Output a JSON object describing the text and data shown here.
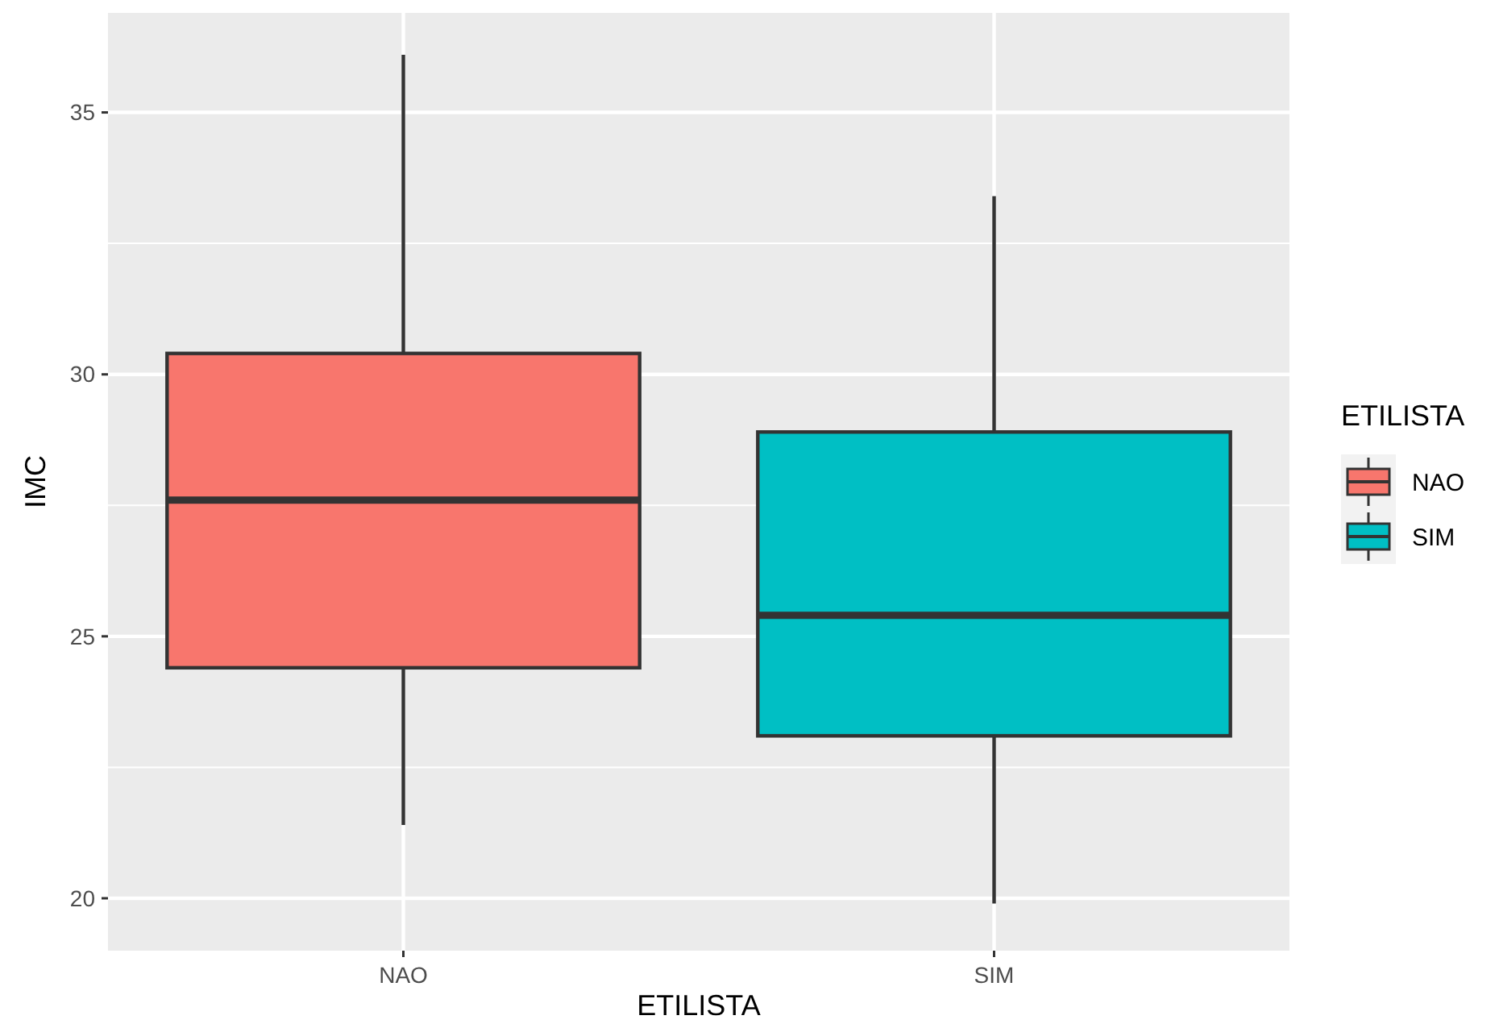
{
  "chart_data": {
    "type": "box",
    "xlabel": "ETILISTA",
    "ylabel": "IMC",
    "legend_title": "ETILISTA",
    "categories": [
      "NAO",
      "SIM"
    ],
    "series": [
      {
        "name": "NAO",
        "color": "#f8766d",
        "boxes": [
          {
            "low": 21.4,
            "q1": 24.4,
            "median": 27.6,
            "q3": 30.4,
            "high": 36.1
          },
          null
        ]
      },
      {
        "name": "SIM",
        "color": "#00bfc4",
        "boxes": [
          null,
          {
            "low": 19.9,
            "q1": 23.1,
            "median": 25.4,
            "q3": 28.9,
            "high": 33.4
          }
        ]
      }
    ],
    "ylim": [
      19.0,
      36.9
    ],
    "yticks": [
      20,
      25,
      30,
      35
    ],
    "grid": true,
    "legend": "right"
  }
}
